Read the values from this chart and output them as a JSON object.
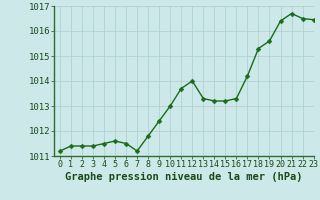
{
  "x": [
    0,
    1,
    2,
    3,
    4,
    5,
    6,
    7,
    8,
    9,
    10,
    11,
    12,
    13,
    14,
    15,
    16,
    17,
    18,
    19,
    20,
    21,
    22,
    23
  ],
  "y": [
    1011.2,
    1011.4,
    1011.4,
    1011.4,
    1011.5,
    1011.6,
    1011.5,
    1011.2,
    1011.8,
    1012.4,
    1013.0,
    1013.7,
    1014.0,
    1013.3,
    1013.2,
    1013.2,
    1013.3,
    1014.2,
    1015.3,
    1015.6,
    1016.4,
    1016.7,
    1016.5,
    1016.45
  ],
  "line_color": "#1a6b1a",
  "marker_color": "#1a6b1a",
  "bg_color": "#cce8e8",
  "grid_color": "#aacece",
  "ylim_min": 1011.0,
  "ylim_max": 1017.0,
  "xlim_min": -0.5,
  "xlim_max": 23,
  "yticks": [
    1011,
    1012,
    1013,
    1014,
    1015,
    1016,
    1017
  ],
  "xticks": [
    0,
    1,
    2,
    3,
    4,
    5,
    6,
    7,
    8,
    9,
    10,
    11,
    12,
    13,
    14,
    15,
    16,
    17,
    18,
    19,
    20,
    21,
    22,
    23
  ],
  "xlabel": "Graphe pression niveau de la mer (hPa)",
  "xlabel_fontsize": 7.5,
  "tick_fontsize": 6.0,
  "ytick_fontsize": 6.5,
  "marker_size": 2.5,
  "line_width": 1.0
}
